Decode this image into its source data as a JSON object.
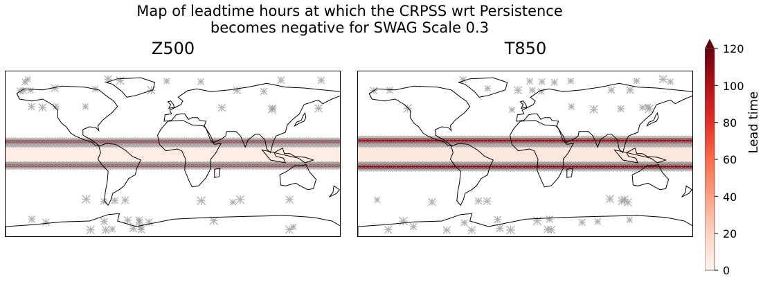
{
  "figure": {
    "title_line1": "Map of leadtime hours at which the CRPSS wrt Persistence",
    "title_line2": "becomes negative for SWAG Scale 0.3"
  },
  "panels": [
    {
      "id": "z500",
      "title": "Z500"
    },
    {
      "id": "t850",
      "title": "T850"
    }
  ],
  "colorbar": {
    "label": "Lead time",
    "ticks": [
      "0",
      "20",
      "40",
      "60",
      "80",
      "100",
      "120"
    ],
    "colormap": [
      "#fff5f0",
      "#fdd4c2",
      "#fca082",
      "#fb6b4b",
      "#e32f27",
      "#b11218",
      "#67000d"
    ],
    "extend": "max"
  },
  "chart_data": [
    {
      "type": "heatmap",
      "title": "Z500",
      "projection": "PlateCarree",
      "value_range": [
        0,
        120
      ],
      "xlim": [
        -180,
        180
      ],
      "ylim": [
        -90,
        90
      ],
      "bands": [
        {
          "lat_range": [
            -10,
            10
          ],
          "lead_time": 5
        },
        {
          "lat_range": [
            12,
            16
          ],
          "lead_time": 105
        },
        {
          "lat_range": [
            -14,
            -10
          ],
          "lead_time": 100
        }
      ],
      "hatch_marker": "x",
      "hatch_color": "#9a9a9a"
    },
    {
      "type": "heatmap",
      "title": "T850",
      "projection": "PlateCarree",
      "value_range": [
        0,
        120
      ],
      "xlim": [
        -180,
        180
      ],
      "ylim": [
        -90,
        90
      ],
      "bands": [
        {
          "lat_range": [
            -10,
            10
          ],
          "lead_time": 8
        },
        {
          "lat_range": [
            12,
            18
          ],
          "lead_time": 105
        },
        {
          "lat_range": [
            -16,
            -10
          ],
          "lead_time": 110
        }
      ],
      "hatch_marker": "x",
      "hatch_color": "#9a9a9a"
    }
  ]
}
